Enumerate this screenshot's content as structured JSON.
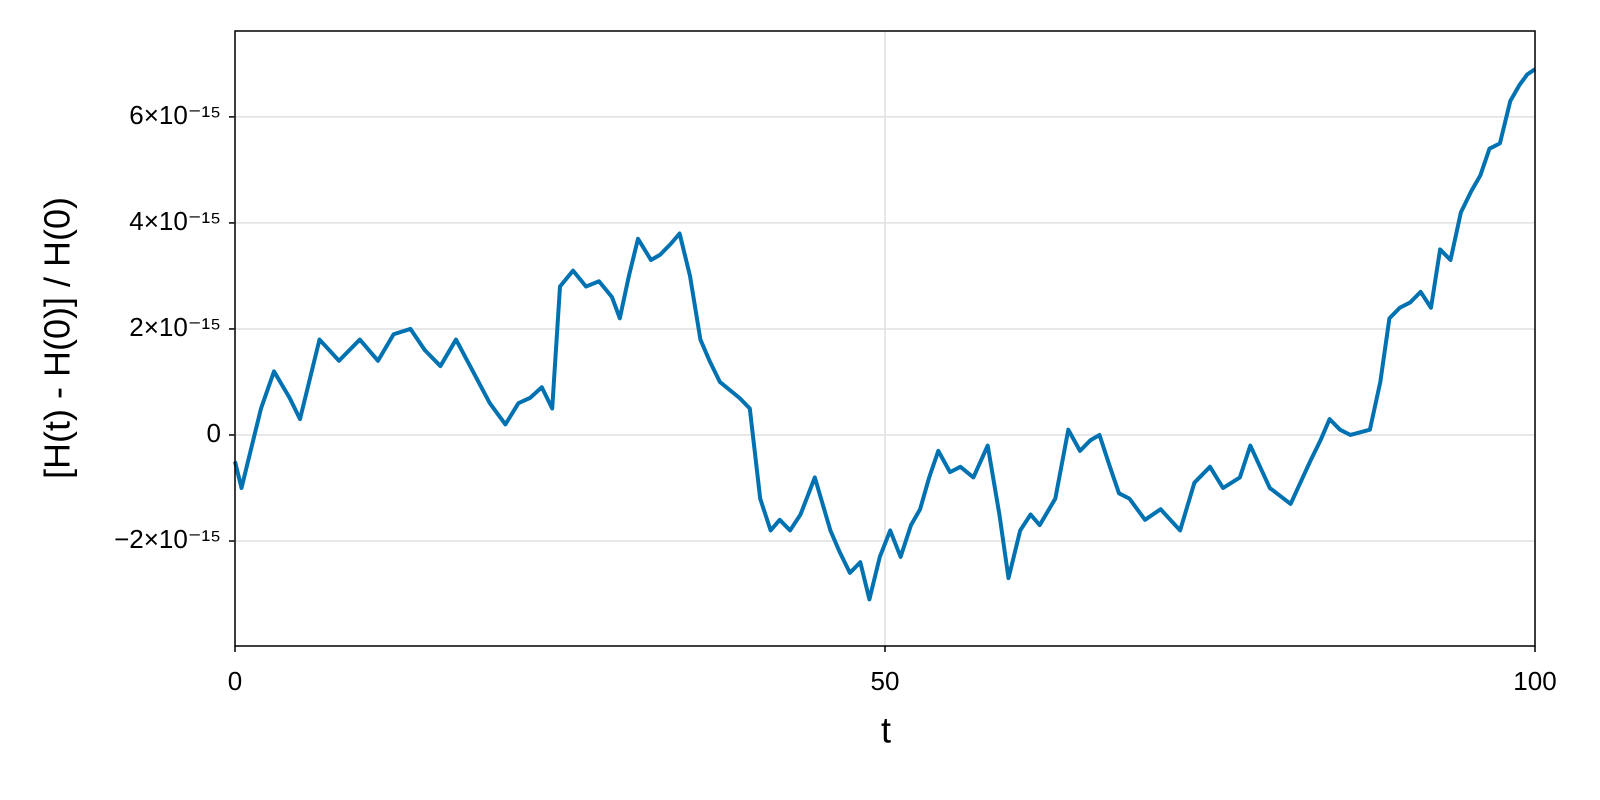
{
  "chart_data": {
    "type": "line",
    "xlabel": "t",
    "ylabel": "[H(t) - H(0)] / H(0)",
    "color": "#0072b2",
    "grid": true,
    "xlim": [
      0,
      100
    ],
    "xticks": [
      0,
      50,
      100
    ],
    "ylim": [
      -3.98e-15,
      7.62e-15
    ],
    "yticks": [
      {
        "value": -2e-15,
        "label": "−2×10⁻¹⁵"
      },
      0,
      {
        "value": 2e-15,
        "label": "2×10⁻¹⁵"
      },
      {
        "value": 4e-15,
        "label": "4×10⁻¹⁵"
      },
      {
        "value": 6e-15,
        "label": "6×10⁻¹⁵"
      }
    ],
    "x": [
      0,
      0.5,
      1.2,
      2,
      3,
      4.2,
      5,
      6.5,
      8,
      9.6,
      11,
      12.2,
      13.5,
      14.6,
      15.8,
      17,
      18.3,
      19.6,
      20.8,
      21.8,
      22.7,
      23.6,
      24.4,
      25,
      26,
      27,
      28,
      29,
      29.6,
      30.3,
      31,
      32,
      32.7,
      33.5,
      34.2,
      35,
      35.8,
      36.5,
      37.3,
      38.8,
      39.6,
      40.4,
      41.2,
      41.9,
      42.7,
      43.5,
      44.6,
      45.8,
      46.5,
      47.3,
      48.1,
      48.8,
      49.6,
      50.4,
      51.2,
      52,
      52.7,
      53.4,
      54.1,
      55,
      55.8,
      56.8,
      57.9,
      58.8,
      59.5,
      60.4,
      61.2,
      61.9,
      63.1,
      64.1,
      65,
      65.8,
      66.5,
      67.3,
      68,
      68.8,
      70,
      71.2,
      72.7,
      73.8,
      75,
      76,
      77.3,
      78.1,
      79.6,
      81.2,
      82.7,
      83.5,
      84.2,
      85,
      85.8,
      87.3,
      88.1,
      88.8,
      89.6,
      90.4,
      91.2,
      92,
      92.7,
      93.5,
      94.3,
      95.1,
      95.8,
      96.5,
      97.3,
      98.1,
      98.8,
      99.4,
      100
    ],
    "values": [
      -5e-16,
      -1e-15,
      -3e-16,
      5e-16,
      1.2e-15,
      7e-16,
      3e-16,
      1.8e-15,
      1.4e-15,
      1.8e-15,
      1.4e-15,
      1.9e-15,
      2e-15,
      1.6e-15,
      1.3e-15,
      1.8e-15,
      1.2e-15,
      6e-16,
      2e-16,
      6e-16,
      7e-16,
      9e-16,
      5e-16,
      2.8e-15,
      3.1e-15,
      2.8e-15,
      2.9e-15,
      2.6e-15,
      2.2e-15,
      3e-15,
      3.7e-15,
      3.3e-15,
      3.4e-15,
      3.6e-15,
      3.8e-15,
      3e-15,
      1.8e-15,
      1.4e-15,
      1e-15,
      7e-16,
      5e-16,
      -1.2e-15,
      -1.8e-15,
      -1.6e-15,
      -1.8e-15,
      -1.5e-15,
      -8e-16,
      -1.8e-15,
      -2.2e-15,
      -2.6e-15,
      -2.4e-15,
      -3.1e-15,
      -2.3e-15,
      -1.8e-15,
      -2.3e-15,
      -1.7e-15,
      -1.4e-15,
      -8e-16,
      -3e-16,
      -7e-16,
      -6e-16,
      -8e-16,
      -2e-16,
      -1.5e-15,
      -2.7e-15,
      -1.8e-15,
      -1.5e-15,
      -1.7e-15,
      -1.2e-15,
      1e-16,
      -3e-16,
      -1e-16,
      0,
      -6e-16,
      -1.1e-15,
      -1.2e-15,
      -1.6e-15,
      -1.4e-15,
      -1.8e-15,
      -9e-16,
      -6e-16,
      -1e-15,
      -8e-16,
      -2e-16,
      -1e-15,
      -1.3e-15,
      -5e-16,
      -1e-16,
      3e-16,
      1e-16,
      0,
      1e-16,
      1e-15,
      2.2e-15,
      2.4e-15,
      2.5e-15,
      2.7e-15,
      2.4e-15,
      3.5e-15,
      3.3e-15,
      4.2e-15,
      4.6e-15,
      4.9e-15,
      5.4e-15,
      5.5e-15,
      6.3e-15,
      6.6e-15,
      6.8e-15,
      6.9e-15
    ]
  }
}
